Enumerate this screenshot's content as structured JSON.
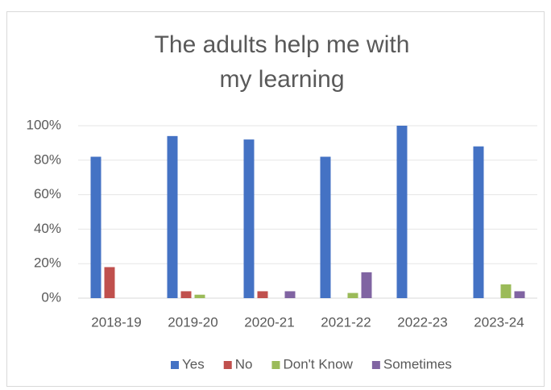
{
  "chart_data": {
    "type": "bar",
    "title": "The adults help me with my learning",
    "categories": [
      "2018-19",
      "2019-20",
      "2020-21",
      "2021-22",
      "2022-23",
      "2023-24"
    ],
    "series": [
      {
        "name": "Yes",
        "color": "#4472c4",
        "values": [
          82,
          94,
          92,
          82,
          100,
          88
        ]
      },
      {
        "name": "No",
        "color": "#c0504d",
        "values": [
          18,
          4,
          4,
          0,
          0,
          0
        ]
      },
      {
        "name": "Don't Know",
        "color": "#9bbb59",
        "values": [
          0,
          2,
          0,
          3,
          0,
          8
        ]
      },
      {
        "name": "Sometimes",
        "color": "#8064a2",
        "values": [
          0,
          0,
          4,
          15,
          0,
          4
        ]
      }
    ],
    "ylim": [
      0,
      100
    ],
    "yticks": [
      {
        "value": 0,
        "label": "0%"
      },
      {
        "value": 20,
        "label": "20%"
      },
      {
        "value": 40,
        "label": "40%"
      },
      {
        "value": 60,
        "label": "60%"
      },
      {
        "value": 80,
        "label": "80%"
      },
      {
        "value": 100,
        "label": "100%"
      }
    ],
    "grid": true,
    "legend": "bottom"
  }
}
